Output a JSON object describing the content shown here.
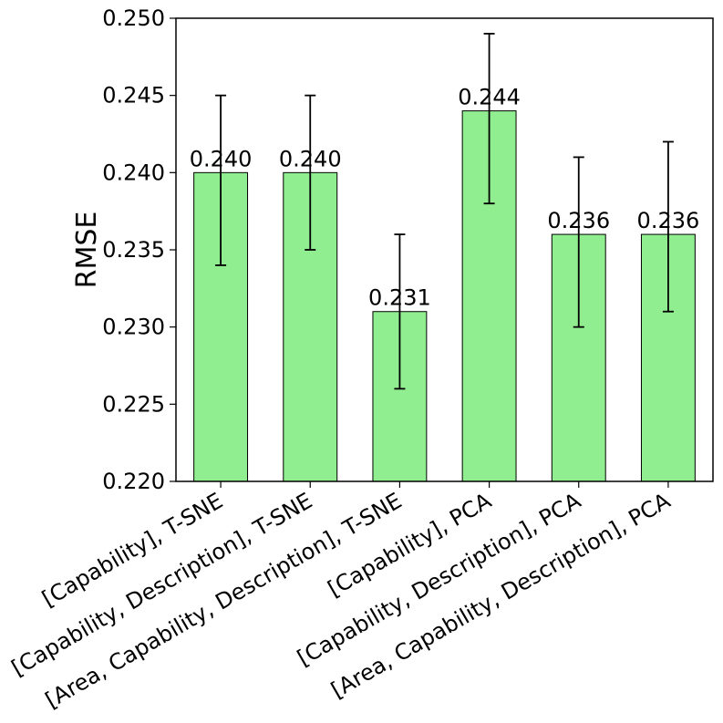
{
  "chart_data": {
    "type": "bar",
    "categories": [
      "[Capability], T-SNE",
      "[Capability, Description], T-SNE",
      "[Area, Capability, Description], T-SNE",
      "[Capability], PCA",
      "[Capability, Description], PCA",
      "[Area, Capability, Description], PCA"
    ],
    "values": [
      0.24,
      0.24,
      0.231,
      0.244,
      0.236,
      0.236
    ],
    "data_labels": [
      "0.240",
      "0.240",
      "0.231",
      "0.244",
      "0.236",
      "0.236"
    ],
    "error_low": [
      0.234,
      0.235,
      0.226,
      0.238,
      0.23,
      0.231
    ],
    "error_high": [
      0.245,
      0.245,
      0.236,
      0.249,
      0.241,
      0.242
    ],
    "xlabel": "",
    "ylabel": "RMSE",
    "ylim": [
      0.22,
      0.25
    ],
    "yticks": [
      "0.220",
      "0.225",
      "0.230",
      "0.235",
      "0.240",
      "0.245",
      "0.250"
    ],
    "grid": false,
    "bar_color": "#90ee90",
    "edge_color": "#000000"
  }
}
